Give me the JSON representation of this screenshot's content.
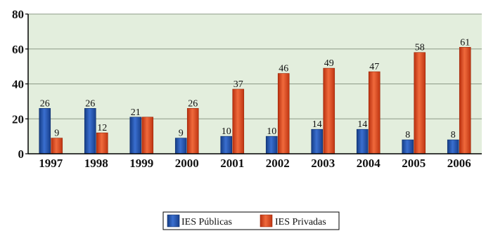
{
  "chart_data": {
    "type": "bar",
    "title": "",
    "xlabel": "",
    "ylabel": "",
    "categories": [
      "1997",
      "1998",
      "1999",
      "2000",
      "2001",
      "2002",
      "2003",
      "2004",
      "2005",
      "2006"
    ],
    "series": [
      {
        "name": "IES Públicas",
        "values": [
          26,
          26,
          21,
          9,
          10,
          10,
          14,
          14,
          8,
          8
        ],
        "labels": [
          "26",
          "26",
          "21",
          "9",
          "10",
          "10",
          "14",
          "14",
          "8",
          "8"
        ],
        "color": "#1f4fa8"
      },
      {
        "name": "IES Privadas",
        "values": [
          9,
          12,
          21,
          26,
          37,
          46,
          49,
          47,
          58,
          61
        ],
        "labels": [
          "9",
          "12",
          "",
          "26",
          "37",
          "46",
          "49",
          "47",
          "58",
          "61"
        ],
        "color": "#d8401a"
      }
    ],
    "ylim": [
      0,
      80
    ],
    "yticks": [
      "0",
      "20",
      "40",
      "60",
      "80"
    ],
    "plot_background": "#e3eedd",
    "grid": true,
    "legend_position": "bottom-center"
  }
}
